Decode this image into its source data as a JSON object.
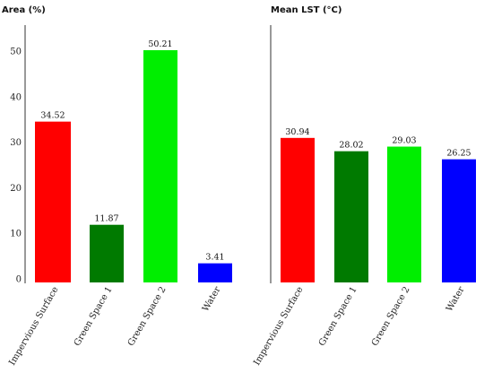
{
  "chart_data": [
    {
      "type": "bar",
      "title": "Area (%)",
      "categories": [
        "Impervious Surface",
        "Green Space 1",
        "Green Space 2",
        "Water"
      ],
      "values": [
        34.52,
        11.87,
        50.21,
        3.41
      ],
      "value_labels": [
        "34.52",
        "11.87",
        "50.21",
        "3.41"
      ],
      "colors": [
        "#ff0000",
        "#007a00",
        "#00ee00",
        "#0000ff"
      ],
      "ylim": [
        0,
        55
      ],
      "yticks": [
        "0",
        "10",
        "20",
        "30",
        "40",
        "50"
      ]
    },
    {
      "type": "bar",
      "title": "Mean LST (°C)",
      "categories": [
        "Impervious Surface",
        "Green Space 1",
        "Green Space 2",
        "Water"
      ],
      "values": [
        30.94,
        28.02,
        29.03,
        26.25
      ],
      "value_labels": [
        "30.94",
        "28.02",
        "29.03",
        "26.25"
      ],
      "colors": [
        "#ff0000",
        "#007a00",
        "#00ee00",
        "#0000ff"
      ]
    }
  ]
}
